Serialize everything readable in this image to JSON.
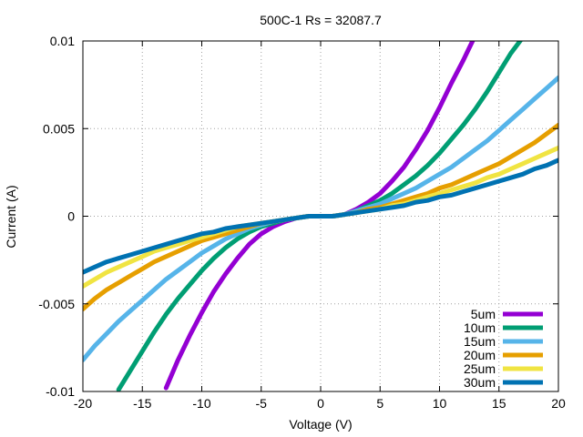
{
  "chart_data": {
    "type": "line",
    "title": "500C-1 Rs  = 32087.7",
    "xlabel": "Voltage (V)",
    "ylabel": "Current (A)",
    "xlim": [
      -20,
      20
    ],
    "ylim": [
      -0.01,
      0.01
    ],
    "x_ticks": [
      -20,
      -15,
      -10,
      -5,
      0,
      5,
      10,
      15,
      20
    ],
    "x_tick_labels": [
      "-20",
      "-15",
      "-10",
      "-5",
      "0",
      "5",
      "10",
      "15",
      "20"
    ],
    "y_ticks": [
      -0.01,
      -0.005,
      0,
      0.005,
      0.01
    ],
    "y_tick_labels": [
      "-0.01",
      "-0.005",
      "0",
      "0.005",
      "0.01"
    ],
    "grid": true,
    "legend_position": "bottom-right",
    "x": [
      -20,
      -19,
      -18,
      -17,
      -16,
      -15,
      -14,
      -13,
      -12,
      -11,
      -10,
      -9,
      -8,
      -7,
      -6,
      -5,
      -4,
      -3,
      -2,
      -1,
      0,
      1,
      2,
      3,
      4,
      5,
      6,
      7,
      8,
      9,
      10,
      11,
      12,
      13,
      14,
      15,
      16,
      17,
      18,
      19,
      20
    ],
    "series": [
      {
        "name": "5um",
        "color": "#9400d3",
        "values": [
          null,
          null,
          null,
          null,
          null,
          null,
          null,
          -0.0098,
          -0.0082,
          -0.0068,
          -0.0055,
          -0.0043,
          -0.0033,
          -0.0024,
          -0.0016,
          -0.001,
          -0.0006,
          -0.0003,
          -0.0001,
          0,
          0,
          0,
          0.0001,
          0.0004,
          0.0008,
          0.0013,
          0.002,
          0.0028,
          0.0038,
          0.0049,
          0.0062,
          0.0076,
          0.0089,
          0.0103,
          null,
          null,
          null,
          null,
          null,
          null,
          null
        ]
      },
      {
        "name": "10um",
        "color": "#009e73",
        "values": [
          null,
          null,
          null,
          -0.0099,
          -0.0088,
          -0.0077,
          -0.0066,
          -0.0056,
          -0.0047,
          -0.0039,
          -0.0031,
          -0.0024,
          -0.0018,
          -0.0013,
          -0.0009,
          -0.0006,
          -0.0004,
          -0.0002,
          -0.0001,
          0,
          0,
          0,
          0.0001,
          0.0003,
          0.0006,
          0.0009,
          0.0013,
          0.0018,
          0.0023,
          0.0029,
          0.0036,
          0.0044,
          0.0052,
          0.0061,
          0.0071,
          0.0082,
          0.0093,
          0.0102,
          null,
          null,
          null
        ]
      },
      {
        "name": "15um",
        "color": "#56b4e9",
        "values": [
          -0.0082,
          -0.0074,
          -0.0067,
          -0.006,
          -0.0054,
          -0.0048,
          -0.0042,
          -0.0036,
          -0.0031,
          -0.0026,
          -0.0021,
          -0.0017,
          -0.0013,
          -0.001,
          -0.0007,
          -0.0005,
          -0.0003,
          -0.0002,
          -0.0001,
          0,
          0,
          0,
          0.0001,
          0.0003,
          0.0005,
          0.0007,
          0.001,
          0.0013,
          0.0016,
          0.002,
          0.0024,
          0.0028,
          0.0033,
          0.0038,
          0.0043,
          0.0049,
          0.0055,
          0.0061,
          0.0067,
          0.0073,
          0.0079
        ]
      },
      {
        "name": "20um",
        "color": "#e69f00",
        "values": [
          -0.0053,
          -0.0047,
          -0.0042,
          -0.0038,
          -0.0034,
          -0.003,
          -0.0026,
          -0.0023,
          -0.002,
          -0.0017,
          -0.0014,
          -0.0012,
          -0.001,
          -0.0008,
          -0.0006,
          -0.0004,
          -0.0003,
          -0.0002,
          -0.0001,
          0,
          0,
          0,
          0.0001,
          0.0002,
          0.0004,
          0.0005,
          0.0007,
          0.0009,
          0.0011,
          0.0013,
          0.0016,
          0.0018,
          0.0021,
          0.0024,
          0.0027,
          0.003,
          0.0034,
          0.0038,
          0.0042,
          0.0047,
          0.0052
        ]
      },
      {
        "name": "25um",
        "color": "#f0e442",
        "values": [
          -0.004,
          -0.0036,
          -0.0032,
          -0.0029,
          -0.0026,
          -0.0023,
          -0.002,
          -0.0018,
          -0.0016,
          -0.0014,
          -0.0012,
          -0.001,
          -0.0008,
          -0.0006,
          -0.0005,
          -0.0004,
          -0.0003,
          -0.0002,
          -0.0001,
          0,
          0,
          0,
          0.0001,
          0.0002,
          0.0003,
          0.0004,
          0.0006,
          0.0007,
          0.0009,
          0.0011,
          0.0013,
          0.0015,
          0.0017,
          0.0019,
          0.0022,
          0.0024,
          0.0027,
          0.003,
          0.0033,
          0.0036,
          0.0039
        ]
      },
      {
        "name": "30um",
        "color": "#0072b2",
        "values": [
          -0.0032,
          -0.0029,
          -0.0026,
          -0.0024,
          -0.0022,
          -0.002,
          -0.0018,
          -0.0016,
          -0.0014,
          -0.0012,
          -0.001,
          -0.0009,
          -0.0007,
          -0.0006,
          -0.0005,
          -0.0004,
          -0.0003,
          -0.0002,
          -0.0001,
          0,
          0,
          0,
          0.0001,
          0.0002,
          0.0003,
          0.0004,
          0.0005,
          0.0006,
          0.0008,
          0.0009,
          0.0011,
          0.0012,
          0.0014,
          0.0016,
          0.0018,
          0.002,
          0.0022,
          0.0024,
          0.0027,
          0.0029,
          0.0032
        ]
      }
    ]
  }
}
